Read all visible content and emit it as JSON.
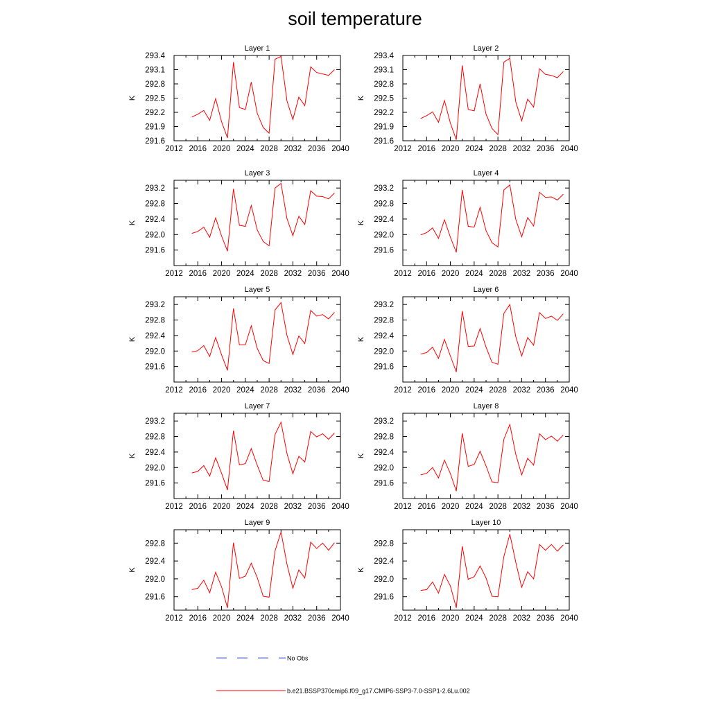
{
  "title": "soil temperature",
  "legend": [
    {
      "label": "No Obs",
      "color": "#3b5bd6",
      "style": "dashed"
    },
    {
      "label": "b.e21.BSSP370cmip6.f09_g17.CMIP6-SSP3-7.0-SSP1-2.6Lu.002",
      "color": "#ff0000",
      "style": "solid"
    }
  ],
  "chart_data": [
    {
      "type": "line",
      "title": "Layer 1",
      "ylabel": "K",
      "xlim": [
        2012,
        2040
      ],
      "ylim": [
        291.6,
        293.4
      ],
      "xticks": [
        2012,
        2016,
        2020,
        2024,
        2028,
        2032,
        2036,
        2040
      ],
      "yticks": [
        "291.6",
        "291.9",
        "292.2",
        "292.5",
        "292.8",
        "293.1",
        "293.4"
      ],
      "x": [
        2015,
        2016,
        2017,
        2018,
        2019,
        2020,
        2021,
        2022,
        2023,
        2024,
        2025,
        2026,
        2027,
        2028,
        2029,
        2030,
        2031,
        2032,
        2033,
        2034,
        2035,
        2036,
        2037,
        2038,
        2039
      ],
      "series": [
        {
          "name": "b.e21.BSSP370cmip6.f09_g17.CMIP6-SSP3-7.0-SSP1-2.6Lu.002",
          "color": "#ff0000",
          "values": [
            292.1,
            292.16,
            292.24,
            292.03,
            292.49,
            292.0,
            291.66,
            293.26,
            292.3,
            292.26,
            292.84,
            292.18,
            291.88,
            291.76,
            293.32,
            293.38,
            292.44,
            292.05,
            292.52,
            292.34,
            293.16,
            293.04,
            293.01,
            292.98,
            293.1
          ]
        }
      ]
    },
    {
      "type": "line",
      "title": "Layer 2",
      "ylabel": "K",
      "xlim": [
        2012,
        2040
      ],
      "ylim": [
        291.6,
        293.4
      ],
      "xticks": [
        2012,
        2016,
        2020,
        2024,
        2028,
        2032,
        2036,
        2040
      ],
      "yticks": [
        "291.6",
        "291.9",
        "292.2",
        "292.5",
        "292.8",
        "293.1",
        "293.4"
      ],
      "x": [
        2015,
        2016,
        2017,
        2018,
        2019,
        2020,
        2021,
        2022,
        2023,
        2024,
        2025,
        2026,
        2027,
        2028,
        2029,
        2030,
        2031,
        2032,
        2033,
        2034,
        2035,
        2036,
        2037,
        2038,
        2039
      ],
      "series": [
        {
          "name": "b.e21.BSSP370cmip6.f09_g17.CMIP6-SSP3-7.0-SSP1-2.6Lu.002",
          "color": "#ff0000",
          "values": [
            292.07,
            292.13,
            292.21,
            291.99,
            292.45,
            291.97,
            291.62,
            293.19,
            292.26,
            292.23,
            292.8,
            292.16,
            291.86,
            291.73,
            293.26,
            293.34,
            292.42,
            292.02,
            292.48,
            292.31,
            293.12,
            293.0,
            292.98,
            292.93,
            293.06
          ]
        }
      ]
    },
    {
      "type": "line",
      "title": "Layer 3",
      "ylabel": "K",
      "xlim": [
        2012,
        2040
      ],
      "ylim": [
        291.2,
        293.4
      ],
      "xticks": [
        2012,
        2016,
        2020,
        2024,
        2028,
        2032,
        2036,
        2040
      ],
      "yticks": [
        "291.6",
        "292.0",
        "292.4",
        "292.8",
        "293.2"
      ],
      "x": [
        2015,
        2016,
        2017,
        2018,
        2019,
        2020,
        2021,
        2022,
        2023,
        2024,
        2025,
        2026,
        2027,
        2028,
        2029,
        2030,
        2031,
        2032,
        2033,
        2034,
        2035,
        2036,
        2037,
        2038,
        2039
      ],
      "series": [
        {
          "name": "b.e21.BSSP370cmip6.f09_g17.CMIP6-SSP3-7.0-SSP1-2.6Lu.002",
          "color": "#ff0000",
          "values": [
            292.03,
            292.08,
            292.19,
            291.93,
            292.43,
            291.96,
            291.57,
            293.18,
            292.24,
            292.21,
            292.75,
            292.12,
            291.82,
            291.71,
            293.2,
            293.32,
            292.41,
            291.97,
            292.47,
            292.26,
            293.13,
            292.99,
            292.98,
            292.92,
            293.07
          ]
        }
      ]
    },
    {
      "type": "line",
      "title": "Layer 4",
      "ylabel": "K",
      "xlim": [
        2012,
        2040
      ],
      "ylim": [
        291.2,
        293.4
      ],
      "xticks": [
        2012,
        2016,
        2020,
        2024,
        2028,
        2032,
        2036,
        2040
      ],
      "yticks": [
        "291.6",
        "292.0",
        "292.4",
        "292.8",
        "293.2"
      ],
      "x": [
        2015,
        2016,
        2017,
        2018,
        2019,
        2020,
        2021,
        2022,
        2023,
        2024,
        2025,
        2026,
        2027,
        2028,
        2029,
        2030,
        2031,
        2032,
        2033,
        2034,
        2035,
        2036,
        2037,
        2038,
        2039
      ],
      "series": [
        {
          "name": "b.e21.BSSP370cmip6.f09_g17.CMIP6-SSP3-7.0-SSP1-2.6Lu.002",
          "color": "#ff0000",
          "values": [
            291.99,
            292.05,
            292.17,
            291.9,
            292.38,
            291.93,
            291.54,
            293.15,
            292.21,
            292.19,
            292.7,
            292.1,
            291.79,
            291.68,
            293.15,
            293.28,
            292.39,
            291.94,
            292.44,
            292.22,
            293.09,
            292.96,
            292.97,
            292.89,
            293.04
          ]
        }
      ]
    },
    {
      "type": "line",
      "title": "Layer 5",
      "ylabel": "K",
      "xlim": [
        2012,
        2040
      ],
      "ylim": [
        291.2,
        293.4
      ],
      "xticks": [
        2012,
        2016,
        2020,
        2024,
        2028,
        2032,
        2036,
        2040
      ],
      "yticks": [
        "291.6",
        "292.0",
        "292.4",
        "292.8",
        "293.2"
      ],
      "x": [
        2015,
        2016,
        2017,
        2018,
        2019,
        2020,
        2021,
        2022,
        2023,
        2024,
        2025,
        2026,
        2027,
        2028,
        2029,
        2030,
        2031,
        2032,
        2033,
        2034,
        2035,
        2036,
        2037,
        2038,
        2039
      ],
      "series": [
        {
          "name": "b.e21.BSSP370cmip6.f09_g17.CMIP6-SSP3-7.0-SSP1-2.6Lu.002",
          "color": "#ff0000",
          "values": [
            291.97,
            292.01,
            292.14,
            291.86,
            292.35,
            291.9,
            291.5,
            293.1,
            292.16,
            292.16,
            292.65,
            292.07,
            291.75,
            291.68,
            293.06,
            293.25,
            292.4,
            291.91,
            292.39,
            292.19,
            293.05,
            292.9,
            292.94,
            292.83,
            293.0
          ]
        }
      ]
    },
    {
      "type": "line",
      "title": "Layer 6",
      "ylabel": "K",
      "xlim": [
        2012,
        2040
      ],
      "ylim": [
        291.2,
        293.4
      ],
      "xticks": [
        2012,
        2016,
        2020,
        2024,
        2028,
        2032,
        2036,
        2040
      ],
      "yticks": [
        "291.6",
        "292.0",
        "292.4",
        "292.8",
        "293.2"
      ],
      "x": [
        2015,
        2016,
        2017,
        2018,
        2019,
        2020,
        2021,
        2022,
        2023,
        2024,
        2025,
        2026,
        2027,
        2028,
        2029,
        2030,
        2031,
        2032,
        2033,
        2034,
        2035,
        2036,
        2037,
        2038,
        2039
      ],
      "series": [
        {
          "name": "b.e21.BSSP370cmip6.f09_g17.CMIP6-SSP3-7.0-SSP1-2.6Lu.002",
          "color": "#ff0000",
          "values": [
            291.92,
            291.96,
            292.1,
            291.81,
            292.3,
            291.87,
            291.46,
            293.03,
            292.12,
            292.13,
            292.58,
            292.1,
            291.71,
            291.66,
            292.97,
            293.2,
            292.37,
            291.87,
            292.35,
            292.15,
            292.99,
            292.84,
            292.9,
            292.79,
            292.96
          ]
        }
      ]
    },
    {
      "type": "line",
      "title": "Layer 7",
      "ylabel": "K",
      "xlim": [
        2012,
        2040
      ],
      "ylim": [
        291.2,
        293.4
      ],
      "xticks": [
        2012,
        2016,
        2020,
        2024,
        2028,
        2032,
        2036,
        2040
      ],
      "yticks": [
        "291.6",
        "292.0",
        "292.4",
        "292.8",
        "293.2"
      ],
      "x": [
        2015,
        2016,
        2017,
        2018,
        2019,
        2020,
        2021,
        2022,
        2023,
        2024,
        2025,
        2026,
        2027,
        2028,
        2029,
        2030,
        2031,
        2032,
        2033,
        2034,
        2035,
        2036,
        2037,
        2038,
        2039
      ],
      "series": [
        {
          "name": "b.e21.BSSP370cmip6.f09_g17.CMIP6-SSP3-7.0-SSP1-2.6Lu.002",
          "color": "#ff0000",
          "values": [
            291.86,
            291.9,
            292.05,
            291.78,
            292.25,
            291.85,
            291.42,
            292.95,
            292.07,
            292.1,
            292.49,
            292.06,
            291.67,
            291.64,
            292.85,
            293.17,
            292.36,
            291.84,
            292.29,
            292.14,
            292.93,
            292.79,
            292.87,
            292.73,
            292.89
          ]
        }
      ]
    },
    {
      "type": "line",
      "title": "Layer 8",
      "ylabel": "K",
      "xlim": [
        2012,
        2040
      ],
      "ylim": [
        291.2,
        293.4
      ],
      "xticks": [
        2012,
        2016,
        2020,
        2024,
        2028,
        2032,
        2036,
        2040
      ],
      "yticks": [
        "291.6",
        "292.0",
        "292.4",
        "292.8",
        "293.2"
      ],
      "x": [
        2015,
        2016,
        2017,
        2018,
        2019,
        2020,
        2021,
        2022,
        2023,
        2024,
        2025,
        2026,
        2027,
        2028,
        2029,
        2030,
        2031,
        2032,
        2033,
        2034,
        2035,
        2036,
        2037,
        2038,
        2039
      ],
      "series": [
        {
          "name": "b.e21.BSSP370cmip6.f09_g17.CMIP6-SSP3-7.0-SSP1-2.6Lu.002",
          "color": "#ff0000",
          "values": [
            291.81,
            291.85,
            292.0,
            291.73,
            292.19,
            291.84,
            291.39,
            292.88,
            292.03,
            292.08,
            292.42,
            292.04,
            291.63,
            291.61,
            292.73,
            293.11,
            292.34,
            291.81,
            292.24,
            292.06,
            292.87,
            292.72,
            292.81,
            292.68,
            292.84
          ]
        }
      ]
    },
    {
      "type": "line",
      "title": "Layer 9",
      "ylabel": "K",
      "xlim": [
        2012,
        2040
      ],
      "ylim": [
        291.3,
        293.1
      ],
      "xticks": [
        2012,
        2016,
        2020,
        2024,
        2028,
        2032,
        2036,
        2040
      ],
      "yticks": [
        "291.6",
        "292.0",
        "292.4",
        "292.8"
      ],
      "x": [
        2015,
        2016,
        2017,
        2018,
        2019,
        2020,
        2021,
        2022,
        2023,
        2024,
        2025,
        2026,
        2027,
        2028,
        2029,
        2030,
        2031,
        2032,
        2033,
        2034,
        2035,
        2036,
        2037,
        2038,
        2039
      ],
      "series": [
        {
          "name": "b.e21.BSSP370cmip6.f09_g17.CMIP6-SSP3-7.0-SSP1-2.6Lu.002",
          "color": "#ff0000",
          "values": [
            291.76,
            291.79,
            291.97,
            291.69,
            292.15,
            291.82,
            291.35,
            292.81,
            292.01,
            292.06,
            292.35,
            292.03,
            291.61,
            291.59,
            292.63,
            293.05,
            292.33,
            291.79,
            292.2,
            292.02,
            292.82,
            292.68,
            292.8,
            292.64,
            292.81
          ]
        }
      ]
    },
    {
      "type": "line",
      "title": "Layer 10",
      "ylabel": "K",
      "xlim": [
        2012,
        2040
      ],
      "ylim": [
        291.3,
        293.1
      ],
      "xticks": [
        2012,
        2016,
        2020,
        2024,
        2028,
        2032,
        2036,
        2040
      ],
      "yticks": [
        "291.6",
        "292.0",
        "292.4",
        "292.8"
      ],
      "x": [
        2015,
        2016,
        2017,
        2018,
        2019,
        2020,
        2021,
        2022,
        2023,
        2024,
        2025,
        2026,
        2027,
        2028,
        2029,
        2030,
        2031,
        2032,
        2033,
        2034,
        2035,
        2036,
        2037,
        2038,
        2039
      ],
      "series": [
        {
          "name": "b.e21.BSSP370cmip6.f09_g17.CMIP6-SSP3-7.0-SSP1-2.6Lu.002",
          "color": "#ff0000",
          "values": [
            291.74,
            291.76,
            291.93,
            291.68,
            292.1,
            291.84,
            291.35,
            292.73,
            291.99,
            292.05,
            292.29,
            292.02,
            291.61,
            291.6,
            292.5,
            293.0,
            292.37,
            291.81,
            292.16,
            292.0,
            292.77,
            292.64,
            292.77,
            292.62,
            292.76
          ]
        }
      ]
    }
  ]
}
